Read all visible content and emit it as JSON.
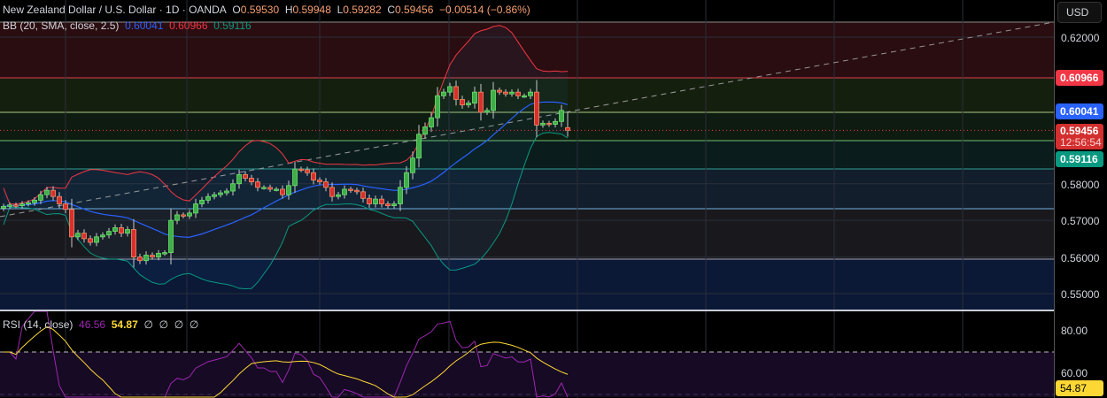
{
  "header": {
    "symbol": "New Zealand Dollar / U.S. Dollar · 1D · OANDA",
    "open_label": "O",
    "open": "0.59530",
    "high_label": "H",
    "high": "0.59948",
    "low_label": "L",
    "low": "0.59282",
    "close_label": "C",
    "close": "0.59456",
    "change": "−0.00514 (−0.86%)"
  },
  "bb_legend": {
    "label": "BB (20, SMA, close, 2.5)",
    "basis": "0.60041",
    "upper": "0.60966",
    "lower": "0.59116"
  },
  "rsi_legend": {
    "label": "RSI (14, close)",
    "rsi": "46.56",
    "ma": "54.87",
    "extra": [
      "∅",
      "∅",
      "∅",
      "∅"
    ]
  },
  "axis": {
    "currency": "USD",
    "price_ticks": [
      "0.62000",
      "0.58000",
      "0.57000",
      "0.56000",
      "0.55000"
    ],
    "price_tick_values": [
      0.62,
      0.58,
      0.57,
      0.56,
      0.55
    ],
    "rsi_ticks": [
      "80.00",
      "60.00"
    ],
    "rsi_tick_values": [
      80,
      60
    ],
    "tags": {
      "upper": "0.60966",
      "basis": "0.60041",
      "last": "0.59456",
      "countdown": "12:56:54",
      "lower": "0.59116",
      "rsi_ma": "54.87"
    }
  },
  "colors": {
    "up": "#4caf50",
    "down": "#f23645",
    "bb_basis": "#2962ff",
    "bb_upper": "#f23645",
    "bb_lower": "#089981",
    "rsi": "#9c27b0",
    "rsi_ma": "#fdd835"
  },
  "chart_data": {
    "type": "candlestick",
    "title": "New Zealand Dollar / U.S. Dollar · 1D · OANDA",
    "ylim": [
      0.545,
      0.624
    ],
    "closes": [
      0.5738,
      0.5742,
      0.574,
      0.5745,
      0.5748,
      0.5755,
      0.577,
      0.5782,
      0.5765,
      0.5745,
      0.573,
      0.5655,
      0.5665,
      0.565,
      0.564,
      0.5655,
      0.566,
      0.567,
      0.568,
      0.5665,
      0.5675,
      0.56,
      0.559,
      0.5605,
      0.56,
      0.561,
      0.5612,
      0.57,
      0.5715,
      0.5712,
      0.572,
      0.5745,
      0.5755,
      0.5765,
      0.577,
      0.5775,
      0.578,
      0.58,
      0.5825,
      0.5815,
      0.5805,
      0.579,
      0.579,
      0.5785,
      0.5785,
      0.577,
      0.5795,
      0.584,
      0.5838,
      0.583,
      0.581,
      0.5805,
      0.579,
      0.5765,
      0.577,
      0.5785,
      0.5782,
      0.5778,
      0.576,
      0.5745,
      0.5758,
      0.5745,
      0.574,
      0.5745,
      0.579,
      0.583,
      0.587,
      0.5935,
      0.5955,
      0.598,
      0.604,
      0.605,
      0.6065,
      0.603,
      0.6015,
      0.602,
      0.605,
      0.5995,
      0.6,
      0.6055,
      0.605,
      0.6045,
      0.605,
      0.604,
      0.604,
      0.605,
      0.596,
      0.5965,
      0.5962,
      0.597,
      0.6,
      0.5953
    ],
    "last_candle": {
      "open": 0.5953,
      "high": 0.59948,
      "low": 0.59282,
      "close": 0.59456
    },
    "indicators": {
      "bollinger": {
        "length": 20,
        "ma": "SMA",
        "source": "close",
        "mult": 2.5,
        "basis": 0.60041,
        "upper": 0.60966,
        "lower": 0.59116
      },
      "rsi": {
        "length": 14,
        "source": "close",
        "value": 46.56,
        "ma": 54.87,
        "levels": [
          70,
          30
        ]
      }
    }
  }
}
